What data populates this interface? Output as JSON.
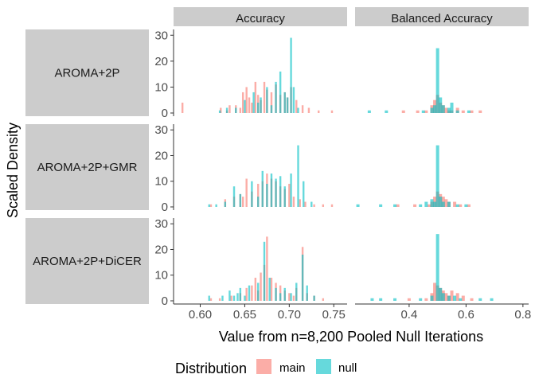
{
  "chart_data": {
    "type": "bar",
    "subtype": "faceted-histogram",
    "xlabel": "Value from n=8,200 Pooled Null Iterations",
    "ylabel": "Scaled Density",
    "legend": {
      "title": "Distribution",
      "placement": "bottom",
      "entries": [
        {
          "name": "main",
          "color": "#F8766D"
        },
        {
          "name": "null",
          "color": "#00BFC4"
        }
      ]
    },
    "columns": [
      {
        "name": "Accuracy",
        "xlim": [
          0.57,
          0.765
        ],
        "xticks": [
          0.6,
          0.65,
          0.7,
          0.75
        ],
        "xtick_labels": [
          "0.60",
          "0.65",
          "0.70",
          "0.75"
        ]
      },
      {
        "name": "Balanced Accuracy",
        "xlim": [
          0.21,
          0.82
        ],
        "xticks": [
          0.4,
          0.6,
          0.8
        ],
        "xtick_labels": [
          "0.4",
          "0.6",
          "0.8"
        ]
      }
    ],
    "rows": [
      {
        "name": "AROMA+2P",
        "ylim": [
          0,
          31
        ],
        "yticks": [
          0,
          10,
          20,
          30
        ]
      },
      {
        "name": "AROMA+2P+GMR",
        "ylim": [
          0,
          31
        ],
        "yticks": [
          0,
          10,
          20,
          30
        ]
      },
      {
        "name": "AROMA+2P+DiCER",
        "ylim": [
          0,
          31
        ],
        "yticks": [
          0,
          10,
          20,
          30
        ]
      }
    ],
    "panels": [
      {
        "row": 0,
        "col": 0,
        "series": [
          {
            "name": "main",
            "bins": [
              [
                0.58,
                4
              ],
              [
                0.623,
                2
              ],
              [
                0.63,
                1
              ],
              [
                0.633,
                3
              ],
              [
                0.64,
                3
              ],
              [
                0.645,
                2
              ],
              [
                0.648,
                8
              ],
              [
                0.652,
                10
              ],
              [
                0.655,
                6
              ],
              [
                0.658,
                4
              ],
              [
                0.662,
                12
              ],
              [
                0.665,
                7
              ],
              [
                0.668,
                5
              ],
              [
                0.672,
                12
              ],
              [
                0.675,
                9
              ],
              [
                0.68,
                8
              ],
              [
                0.685,
                11
              ],
              [
                0.69,
                7
              ],
              [
                0.695,
                8
              ],
              [
                0.698,
                6
              ],
              [
                0.702,
                10
              ],
              [
                0.708,
                5
              ],
              [
                0.715,
                3
              ],
              [
                0.722,
                2
              ],
              [
                0.733,
                1
              ],
              [
                0.748,
                1
              ]
            ]
          },
          {
            "name": "null",
            "bins": [
              [
                0.622,
                1
              ],
              [
                0.63,
                2
              ],
              [
                0.64,
                2
              ],
              [
                0.65,
                5
              ],
              [
                0.66,
                8
              ],
              [
                0.665,
                4
              ],
              [
                0.668,
                6
              ],
              [
                0.675,
                10
              ],
              [
                0.68,
                3
              ],
              [
                0.685,
                12
              ],
              [
                0.69,
                16
              ],
              [
                0.695,
                8
              ],
              [
                0.698,
                6
              ],
              [
                0.702,
                29
              ],
              [
                0.705,
                10
              ],
              [
                0.71,
                2
              ]
            ]
          }
        ]
      },
      {
        "row": 0,
        "col": 1,
        "series": [
          {
            "name": "main",
            "bins": [
              [
                0.38,
                1
              ],
              [
                0.43,
                1
              ],
              [
                0.46,
                1
              ],
              [
                0.48,
                3
              ],
              [
                0.49,
                5
              ],
              [
                0.5,
                7
              ],
              [
                0.51,
                4
              ],
              [
                0.52,
                3
              ],
              [
                0.53,
                2
              ],
              [
                0.54,
                1
              ],
              [
                0.55,
                1
              ],
              [
                0.57,
                2
              ],
              [
                0.59,
                1
              ],
              [
                0.62,
                1
              ],
              [
                0.65,
                1
              ]
            ]
          },
          {
            "name": "null",
            "bins": [
              [
                0.26,
                1
              ],
              [
                0.32,
                1
              ],
              [
                0.45,
                1
              ],
              [
                0.48,
                2
              ],
              [
                0.49,
                3
              ],
              [
                0.5,
                25
              ],
              [
                0.51,
                6
              ],
              [
                0.52,
                3
              ],
              [
                0.54,
                2
              ],
              [
                0.55,
                4
              ],
              [
                0.57,
                1
              ],
              [
                0.61,
                1
              ]
            ]
          }
        ]
      },
      {
        "row": 1,
        "col": 0,
        "series": [
          {
            "name": "main",
            "bins": [
              [
                0.612,
                1
              ],
              [
                0.628,
                3
              ],
              [
                0.638,
                4
              ],
              [
                0.645,
                5
              ],
              [
                0.648,
                4
              ],
              [
                0.652,
                11
              ],
              [
                0.658,
                6
              ],
              [
                0.665,
                9
              ],
              [
                0.67,
                10
              ],
              [
                0.675,
                13
              ],
              [
                0.68,
                11
              ],
              [
                0.685,
                10
              ],
              [
                0.69,
                8
              ],
              [
                0.695,
                7
              ],
              [
                0.7,
                9
              ],
              [
                0.705,
                4
              ],
              [
                0.712,
                3
              ],
              [
                0.718,
                2
              ],
              [
                0.728,
                1
              ],
              [
                0.738,
                1
              ],
              [
                0.748,
                1
              ]
            ]
          },
          {
            "name": "null",
            "bins": [
              [
                0.61,
                1
              ],
              [
                0.618,
                1
              ],
              [
                0.628,
                2
              ],
              [
                0.638,
                8
              ],
              [
                0.645,
                5
              ],
              [
                0.658,
                10
              ],
              [
                0.665,
                4
              ],
              [
                0.67,
                14
              ],
              [
                0.675,
                9
              ],
              [
                0.68,
                13
              ],
              [
                0.685,
                11
              ],
              [
                0.69,
                12
              ],
              [
                0.695,
                8
              ],
              [
                0.702,
                13
              ],
              [
                0.71,
                24
              ],
              [
                0.716,
                10
              ],
              [
                0.725,
                2
              ]
            ]
          }
        ]
      },
      {
        "row": 1,
        "col": 1,
        "series": [
          {
            "name": "main",
            "bins": [
              [
                0.36,
                1
              ],
              [
                0.42,
                1
              ],
              [
                0.47,
                1
              ],
              [
                0.48,
                2
              ],
              [
                0.49,
                4
              ],
              [
                0.5,
                6
              ],
              [
                0.51,
                5
              ],
              [
                0.52,
                4
              ],
              [
                0.53,
                3
              ],
              [
                0.54,
                2
              ],
              [
                0.56,
                2
              ],
              [
                0.58,
                1
              ],
              [
                0.61,
                1
              ]
            ]
          },
          {
            "name": "null",
            "bins": [
              [
                0.22,
                1
              ],
              [
                0.3,
                1
              ],
              [
                0.35,
                1
              ],
              [
                0.44,
                1
              ],
              [
                0.46,
                2
              ],
              [
                0.48,
                3
              ],
              [
                0.49,
                2
              ],
              [
                0.5,
                24
              ],
              [
                0.51,
                4
              ],
              [
                0.52,
                2
              ],
              [
                0.54,
                2
              ],
              [
                0.57,
                1
              ],
              [
                0.6,
                1
              ]
            ]
          }
        ]
      },
      {
        "row": 2,
        "col": 0,
        "series": [
          {
            "name": "main",
            "bins": [
              [
                0.612,
                1
              ],
              [
                0.622,
                1
              ],
              [
                0.635,
                2
              ],
              [
                0.645,
                3
              ],
              [
                0.652,
                5
              ],
              [
                0.658,
                6
              ],
              [
                0.662,
                9
              ],
              [
                0.665,
                4
              ],
              [
                0.668,
                11
              ],
              [
                0.672,
                14
              ],
              [
                0.675,
                25
              ],
              [
                0.68,
                9
              ],
              [
                0.685,
                7
              ],
              [
                0.69,
                6
              ],
              [
                0.695,
                4
              ],
              [
                0.7,
                3
              ],
              [
                0.705,
                2
              ],
              [
                0.708,
                5
              ],
              [
                0.715,
                21
              ],
              [
                0.72,
                3
              ],
              [
                0.728,
                2
              ],
              [
                0.738,
                1
              ]
            ]
          },
          {
            "name": "null",
            "bins": [
              [
                0.61,
                2
              ],
              [
                0.625,
                2
              ],
              [
                0.633,
                4
              ],
              [
                0.638,
                2
              ],
              [
                0.642,
                3
              ],
              [
                0.645,
                5
              ],
              [
                0.65,
                2
              ],
              [
                0.655,
                6
              ],
              [
                0.665,
                7
              ],
              [
                0.672,
                23
              ],
              [
                0.678,
                9
              ],
              [
                0.685,
                5
              ],
              [
                0.69,
                3
              ],
              [
                0.695,
                5
              ],
              [
                0.702,
                3
              ],
              [
                0.708,
                7
              ],
              [
                0.715,
                18
              ],
              [
                0.72,
                6
              ],
              [
                0.728,
                2
              ]
            ]
          }
        ]
      },
      {
        "row": 2,
        "col": 1,
        "series": [
          {
            "name": "main",
            "bins": [
              [
                0.4,
                1
              ],
              [
                0.46,
                1
              ],
              [
                0.48,
                3
              ],
              [
                0.49,
                7
              ],
              [
                0.5,
                6
              ],
              [
                0.51,
                5
              ],
              [
                0.52,
                4
              ],
              [
                0.53,
                3
              ],
              [
                0.54,
                2
              ],
              [
                0.55,
                4
              ],
              [
                0.57,
                3
              ],
              [
                0.59,
                2
              ],
              [
                0.62,
                1
              ]
            ]
          },
          {
            "name": "null",
            "bins": [
              [
                0.27,
                1
              ],
              [
                0.3,
                1
              ],
              [
                0.35,
                1
              ],
              [
                0.44,
                1
              ],
              [
                0.48,
                2
              ],
              [
                0.5,
                26
              ],
              [
                0.51,
                5
              ],
              [
                0.52,
                3
              ],
              [
                0.54,
                2
              ],
              [
                0.56,
                2
              ],
              [
                0.58,
                1
              ],
              [
                0.65,
                1
              ],
              [
                0.69,
                1
              ]
            ]
          }
        ]
      }
    ]
  }
}
